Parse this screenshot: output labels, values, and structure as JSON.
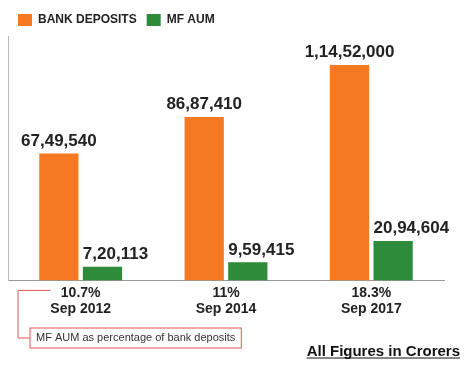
{
  "chart_data": {
    "type": "bar",
    "categories": [
      "Sep 2012",
      "Sep 2014",
      "Sep 2017"
    ],
    "series": [
      {
        "name": "BANK DEPOSITS",
        "color": "#f47920",
        "values": [
          6749540,
          8687410,
          11452000
        ],
        "value_labels": [
          "67,49,540",
          "86,87,410",
          "1,14,52,000"
        ]
      },
      {
        "name": "MF AUM",
        "color": "#2e8b3a",
        "values": [
          720113,
          959415,
          2094604
        ],
        "value_labels": [
          "7,20,113",
          "9,59,415",
          "20,94,604"
        ]
      }
    ],
    "ylim": [
      0,
      13000000
    ],
    "grid": false,
    "legend": "top-left",
    "data_labels": true,
    "tick_labels": "x",
    "ratios": {
      "label": "MF AUM as percentage of bank deposits",
      "values": [
        10.7,
        11,
        18.3
      ],
      "value_labels": [
        "10.7%",
        "11%",
        "18.3%"
      ]
    },
    "note": "All Figures in Crorers"
  }
}
